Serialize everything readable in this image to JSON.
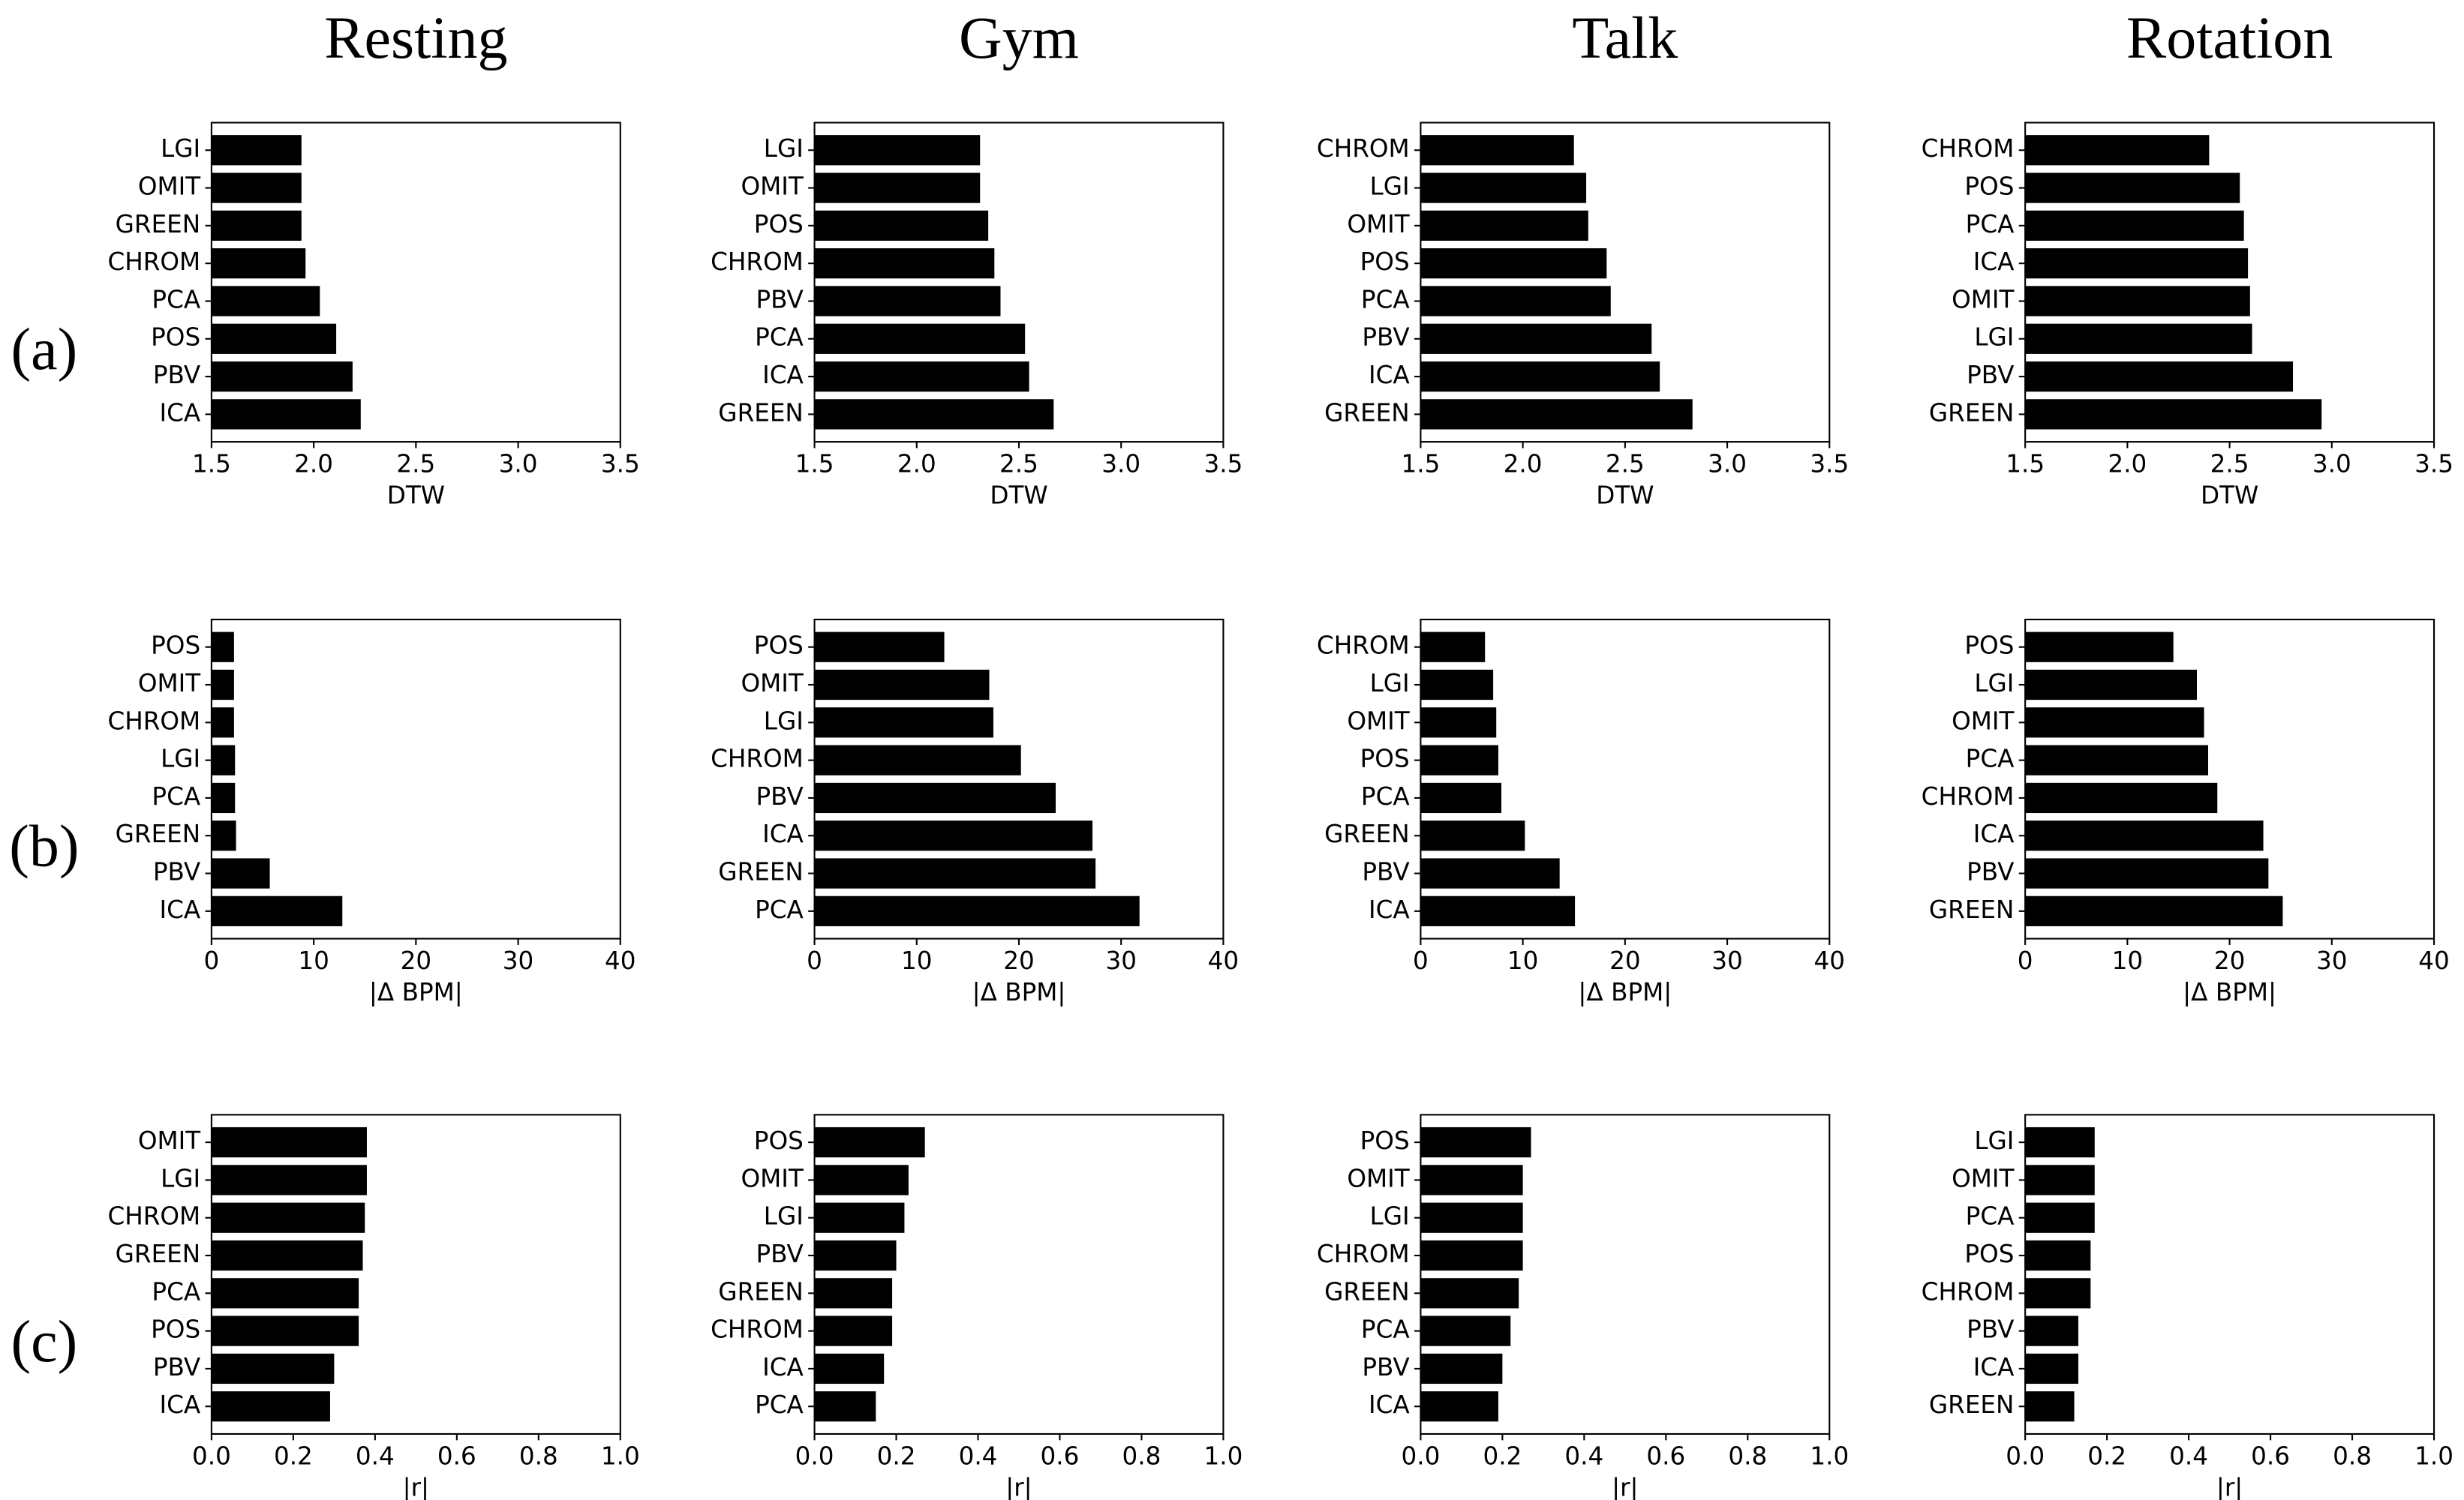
{
  "column_titles": [
    "Resting",
    "Gym",
    "Talk",
    "Rotation"
  ],
  "row_labels": [
    "(a)",
    "(b)",
    "(c)"
  ],
  "chart_data": [
    {
      "type": "bar",
      "orientation": "horizontal",
      "color": "#000000",
      "x_label": "DTW",
      "categories": [
        "LGI",
        "OMIT",
        "GREEN",
        "CHROM",
        "PCA",
        "POS",
        "PBV",
        "ICA"
      ],
      "values": [
        1.94,
        1.94,
        1.94,
        1.96,
        2.03,
        2.11,
        2.19,
        2.23
      ],
      "xlim": [
        1.5,
        3.5
      ],
      "xticks": [
        1.5,
        {
          "value": 2,
          "label": "2.0"
        },
        2.5,
        {
          "value": 3,
          "label": "3.0"
        },
        3.5
      ]
    },
    {
      "type": "bar",
      "orientation": "horizontal",
      "color": "#000000",
      "x_label": "DTW",
      "categories": [
        "LGI",
        "OMIT",
        "POS",
        "CHROM",
        "PBV",
        "PCA",
        "ICA",
        "GREEN"
      ],
      "values": [
        2.31,
        2.31,
        2.35,
        2.38,
        2.41,
        2.53,
        2.55,
        2.67
      ],
      "xlim": [
        1.5,
        3.5
      ],
      "xticks": [
        1.5,
        {
          "value": 2,
          "label": "2.0"
        },
        2.5,
        {
          "value": 3,
          "label": "3.0"
        },
        3.5
      ]
    },
    {
      "type": "bar",
      "orientation": "horizontal",
      "color": "#000000",
      "x_label": "DTW",
      "categories": [
        "CHROM",
        "LGI",
        "OMIT",
        "POS",
        "PCA",
        "PBV",
        "ICA",
        "GREEN"
      ],
      "values": [
        2.25,
        2.31,
        2.32,
        2.41,
        2.43,
        2.63,
        2.67,
        2.83
      ],
      "xlim": [
        1.5,
        3.5
      ],
      "xticks": [
        1.5,
        {
          "value": 2,
          "label": "2.0"
        },
        2.5,
        {
          "value": 3,
          "label": "3.0"
        },
        3.5
      ]
    },
    {
      "type": "bar",
      "orientation": "horizontal",
      "color": "#000000",
      "x_label": "DTW",
      "categories": [
        "CHROM",
        "POS",
        "PCA",
        "ICA",
        "OMIT",
        "LGI",
        "PBV",
        "GREEN"
      ],
      "values": [
        2.4,
        2.55,
        2.57,
        2.59,
        2.6,
        2.61,
        2.81,
        2.95
      ],
      "xlim": [
        1.5,
        3.5
      ],
      "xticks": [
        1.5,
        {
          "value": 2,
          "label": "2.0"
        },
        2.5,
        {
          "value": 3,
          "label": "3.0"
        },
        3.5
      ]
    },
    {
      "type": "bar",
      "orientation": "horizontal",
      "color": "#000000",
      "x_label": "|Δ BPM|",
      "categories": [
        "POS",
        "OMIT",
        "CHROM",
        "LGI",
        "PCA",
        "GREEN",
        "PBV",
        "ICA"
      ],
      "values": [
        2.2,
        2.2,
        2.2,
        2.3,
        2.3,
        2.4,
        5.7,
        12.8
      ],
      "xlim": [
        0,
        40
      ],
      "xticks": [
        0,
        10,
        20,
        30,
        40
      ]
    },
    {
      "type": "bar",
      "orientation": "horizontal",
      "color": "#000000",
      "x_label": "|Δ BPM|",
      "categories": [
        "POS",
        "OMIT",
        "LGI",
        "CHROM",
        "PBV",
        "ICA",
        "GREEN",
        "PCA"
      ],
      "values": [
        12.7,
        17.1,
        17.5,
        20.2,
        23.6,
        27.2,
        27.5,
        31.8
      ],
      "xlim": [
        0,
        40
      ],
      "xticks": [
        0,
        10,
        20,
        30,
        40
      ]
    },
    {
      "type": "bar",
      "orientation": "horizontal",
      "color": "#000000",
      "x_label": "|Δ BPM|",
      "categories": [
        "CHROM",
        "LGI",
        "OMIT",
        "POS",
        "PCA",
        "GREEN",
        "PBV",
        "ICA"
      ],
      "values": [
        6.3,
        7.1,
        7.4,
        7.6,
        7.9,
        10.2,
        13.6,
        15.1
      ],
      "xlim": [
        0,
        40
      ],
      "xticks": [
        0,
        10,
        20,
        30,
        40
      ]
    },
    {
      "type": "bar",
      "orientation": "horizontal",
      "color": "#000000",
      "x_label": "|Δ BPM|",
      "categories": [
        "POS",
        "LGI",
        "OMIT",
        "PCA",
        "CHROM",
        "ICA",
        "PBV",
        "GREEN"
      ],
      "values": [
        14.5,
        16.8,
        17.5,
        17.9,
        18.8,
        23.3,
        23.8,
        25.2
      ],
      "xlim": [
        0,
        40
      ],
      "xticks": [
        0,
        10,
        20,
        30,
        40
      ]
    },
    {
      "type": "bar",
      "orientation": "horizontal",
      "color": "#000000",
      "x_label": "|r|",
      "categories": [
        "OMIT",
        "LGI",
        "CHROM",
        "GREEN",
        "PCA",
        "POS",
        "PBV",
        "ICA"
      ],
      "values": [
        0.38,
        0.38,
        0.375,
        0.37,
        0.36,
        0.36,
        0.3,
        0.29
      ],
      "xlim": [
        0,
        1
      ],
      "xticks": [
        {
          "value": 0,
          "label": "0.0"
        },
        0.2,
        0.4,
        0.6,
        0.8,
        {
          "value": 1,
          "label": "1.0"
        }
      ]
    },
    {
      "type": "bar",
      "orientation": "horizontal",
      "color": "#000000",
      "x_label": "|r|",
      "categories": [
        "POS",
        "OMIT",
        "LGI",
        "PBV",
        "GREEN",
        "CHROM",
        "ICA",
        "PCA"
      ],
      "values": [
        0.27,
        0.23,
        0.22,
        0.2,
        0.19,
        0.19,
        0.17,
        0.15
      ],
      "xlim": [
        0,
        1
      ],
      "xticks": [
        {
          "value": 0,
          "label": "0.0"
        },
        0.2,
        0.4,
        0.6,
        0.8,
        {
          "value": 1,
          "label": "1.0"
        }
      ]
    },
    {
      "type": "bar",
      "orientation": "horizontal",
      "color": "#000000",
      "x_label": "|r|",
      "categories": [
        "POS",
        "OMIT",
        "LGI",
        "CHROM",
        "GREEN",
        "PCA",
        "PBV",
        "ICA"
      ],
      "values": [
        0.27,
        0.25,
        0.25,
        0.25,
        0.24,
        0.22,
        0.2,
        0.19
      ],
      "xlim": [
        0,
        1
      ],
      "xticks": [
        {
          "value": 0,
          "label": "0.0"
        },
        0.2,
        0.4,
        0.6,
        0.8,
        {
          "value": 1,
          "label": "1.0"
        }
      ]
    },
    {
      "type": "bar",
      "orientation": "horizontal",
      "color": "#000000",
      "x_label": "|r|",
      "categories": [
        "LGI",
        "OMIT",
        "PCA",
        "POS",
        "CHROM",
        "PBV",
        "ICA",
        "GREEN"
      ],
      "values": [
        0.17,
        0.17,
        0.17,
        0.16,
        0.16,
        0.13,
        0.13,
        0.12
      ],
      "xlim": [
        0,
        1
      ],
      "xticks": [
        {
          "value": 0,
          "label": "0.0"
        },
        0.2,
        0.4,
        0.6,
        0.8,
        {
          "value": 1,
          "label": "1.0"
        }
      ]
    }
  ]
}
